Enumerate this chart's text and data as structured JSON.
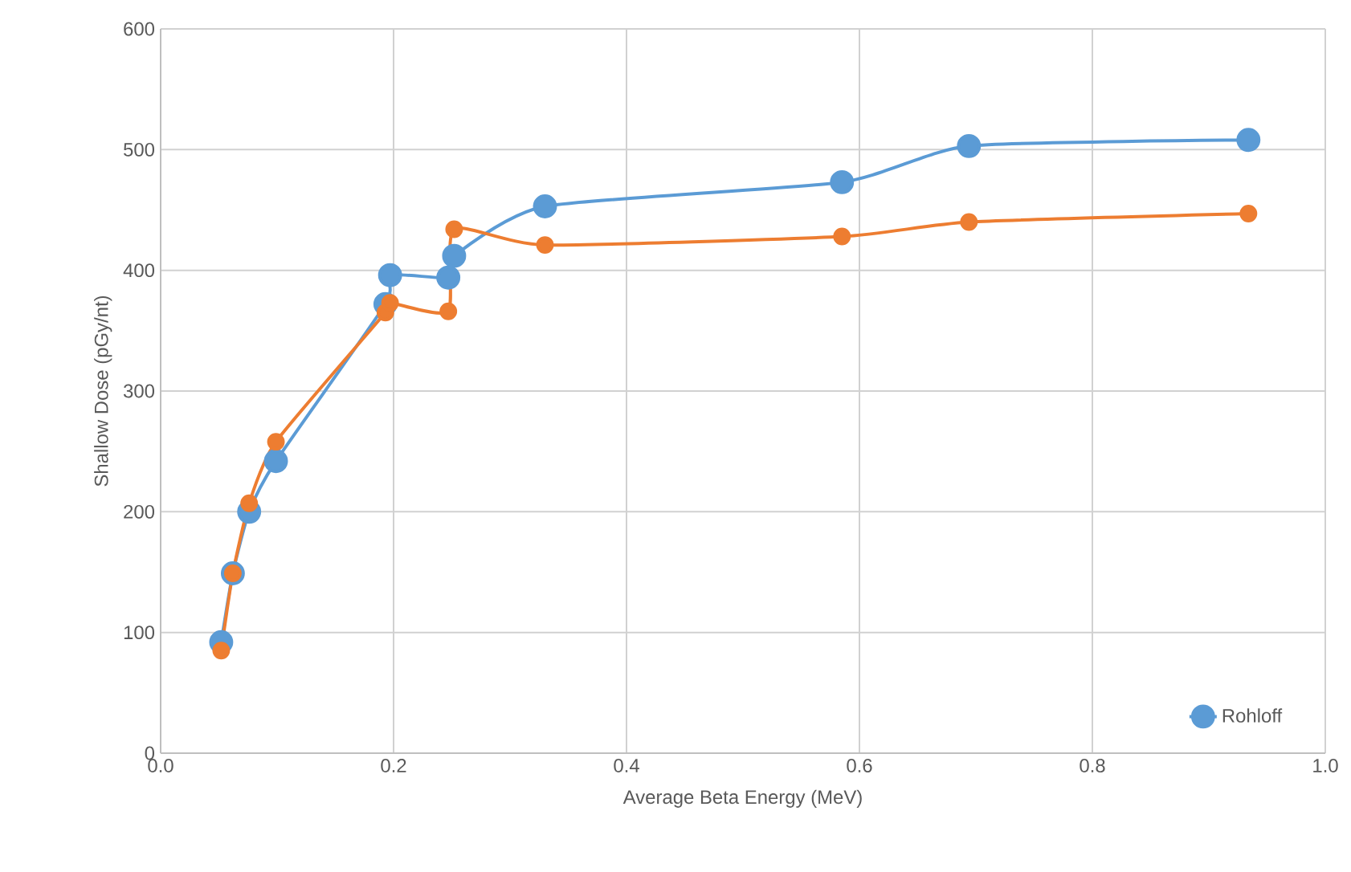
{
  "chart_data": {
    "type": "line",
    "xlabel": "Average Beta Energy (MeV)",
    "ylabel": "Shallow Dose (pGy/nt)",
    "xlim": [
      0.0,
      1.0
    ],
    "ylim": [
      0,
      600
    ],
    "xticks": [
      {
        "value": 0,
        "label": "0.0"
      },
      0.2,
      0.4,
      0.6,
      0.8,
      {
        "value": 1,
        "label": "1.0"
      }
    ],
    "yticks": [
      0,
      100,
      200,
      300,
      400,
      500,
      600
    ],
    "grid": true,
    "legend": "bottom right",
    "marker": "circle",
    "line_style": "solid",
    "series": [
      {
        "name": "Rohloff",
        "color": "#5b9bd5",
        "x": [
          0.052,
          0.062,
          0.076,
          0.099,
          0.193,
          0.197,
          0.247,
          0.252,
          0.33,
          0.585,
          0.694,
          0.934
        ],
        "values": [
          92,
          149,
          200,
          242,
          372,
          396,
          394,
          412,
          453,
          473,
          503,
          508
        ]
      },
      {
        "color": "#ed7d31",
        "x": [
          0.052,
          0.062,
          0.076,
          0.099,
          0.193,
          0.197,
          0.247,
          0.252,
          0.33,
          0.585,
          0.694,
          0.934
        ],
        "values": [
          85,
          149,
          207,
          258,
          365,
          373,
          366,
          434,
          421,
          428,
          440,
          447
        ]
      }
    ]
  }
}
